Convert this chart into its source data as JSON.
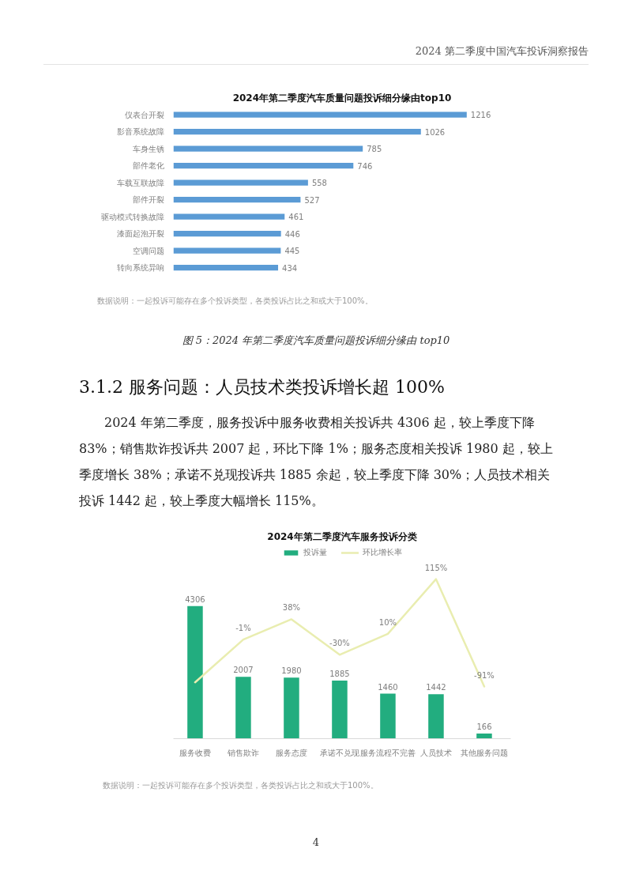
{
  "chart_data": [
    {
      "type": "bar",
      "orientation": "horizontal",
      "title": "2024年第二季度汽车质量问题投诉细分缘由top10",
      "categories": [
        "仪表台开裂",
        "影音系统故障",
        "车身生锈",
        "部件老化",
        "车载互联故障",
        "部件开裂",
        "驱动模式转换故障",
        "漆面起泡开裂",
        "空调问题",
        "转向系统异响"
      ],
      "values": [
        1216,
        1026,
        785,
        746,
        558,
        527,
        461,
        446,
        445,
        434
      ],
      "color": "#5b9bd5",
      "data_labels": true,
      "tick_labels": "y",
      "annotations": [
        "2024 第二季度中国汽车投诉洞察报告",
        "数据说明：一起投诉可能存在多个投诉类型，各类投诉占比之和或大于100%。",
        "图 5：2024 年第二季度汽车质量问题投诉细分缘由 top10"
      ]
    },
    {
      "type": "bar",
      "title": "2024年第二季度汽车服务投诉分类",
      "categories": [
        "服务收费",
        "销售欺诈",
        "服务态度",
        "承诺不兑现",
        "服务流程不完善",
        "人员技术",
        "其他服务问题"
      ],
      "series": [
        {
          "name": "投诉量",
          "type": "bar",
          "color": "#22ad7f",
          "values": [
            4306,
            2007,
            1980,
            1885,
            1460,
            1442,
            166
          ],
          "value_labels": [
            "4306",
            "2007",
            "1980",
            "1885",
            "1460",
            "1442",
            "166"
          ]
        },
        {
          "name": "环比增长率",
          "type": "line",
          "axis": "y2",
          "color": "#e9edb0",
          "values": [
            -83,
            -1,
            38,
            -30,
            10,
            115,
            -91
          ],
          "value_labels": [
            null,
            "-1%",
            "38%",
            "-30%",
            "10%",
            "115%",
            "-91%"
          ]
        }
      ],
      "legend": "top",
      "tick_labels": "x",
      "annotations": [
        "3.1.2 服务问题：人员技术类投诉增长超 100%",
        "2024 年第二季度，服务投诉中服务收费相关投诉共 4306 起，较上季度下降 83%；销售欺诈投诉共 2007 起，环比下降 1%；服务态度相关投诉 1980 起，较上季度增长 38%；承诺不兑现投诉共 1885 余起，较上季度下降 30%；人员技术相关投诉 1442 起，较上季度大幅增长 115%。",
        "数据说明：一起投诉可能存在多个投诉类型，各类投诉占比之和或大于100%。",
        "4"
      ]
    }
  ]
}
